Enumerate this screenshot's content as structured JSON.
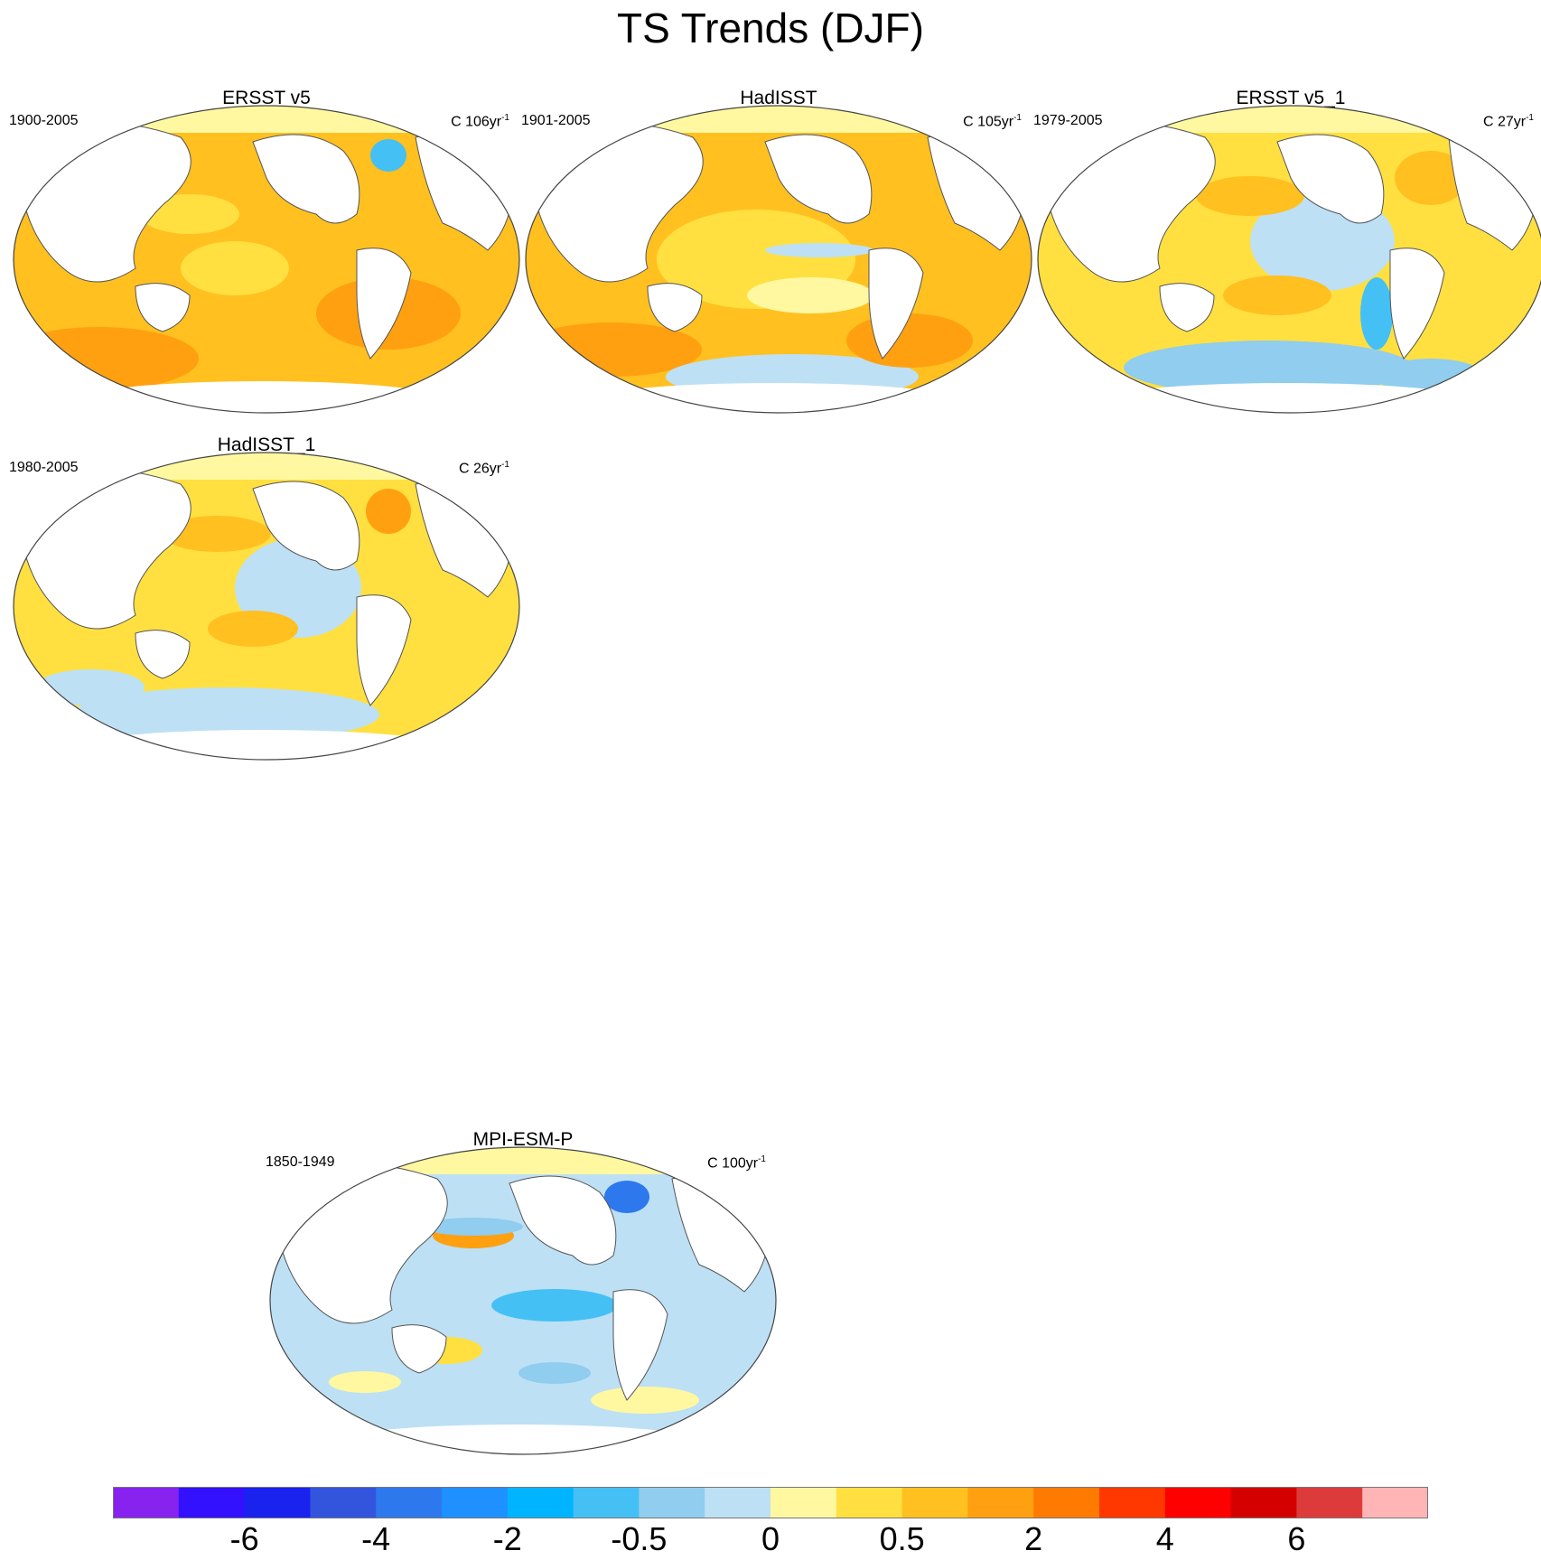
{
  "title": "TS Trends (DJF)",
  "panels": [
    {
      "name": "ERSST v5",
      "period": "1900-2005",
      "units_prefix": "C 106yr",
      "units_sup": "-1",
      "trend": "warm"
    },
    {
      "name": "HadISST",
      "period": "1901-2005",
      "units_prefix": "C 105yr",
      "units_sup": "-1",
      "trend": "warm-patchy"
    },
    {
      "name": "ERSST v5_1",
      "period": "1979-2005",
      "units_prefix": "C 27yr",
      "units_sup": "-1",
      "trend": "mixed"
    },
    {
      "name": "HadISST_1",
      "period": "1980-2005",
      "units_prefix": "C 26yr",
      "units_sup": "-1",
      "trend": "mixed"
    },
    {
      "name": "MPI-ESM-P",
      "period": "1850-1949",
      "units_prefix": "C 100yr",
      "units_sup": "-1",
      "trend": "cool"
    }
  ],
  "colorbar": {
    "colors": [
      "#8822ee",
      "#3311ff",
      "#1a22ee",
      "#3355dd",
      "#2e78ee",
      "#1e90ff",
      "#00b4ff",
      "#44c0f5",
      "#90cdee",
      "#bde0f5",
      "#fff8a0",
      "#ffe040",
      "#ffc020",
      "#ffa010",
      "#ff7a00",
      "#ff3800",
      "#ff0000",
      "#d40000",
      "#dd3b3b",
      "#ffb5b5"
    ],
    "labels": [
      "-6",
      "-4",
      "-2",
      "-0.5",
      "0",
      "0.5",
      "2",
      "4",
      "6"
    ]
  }
}
